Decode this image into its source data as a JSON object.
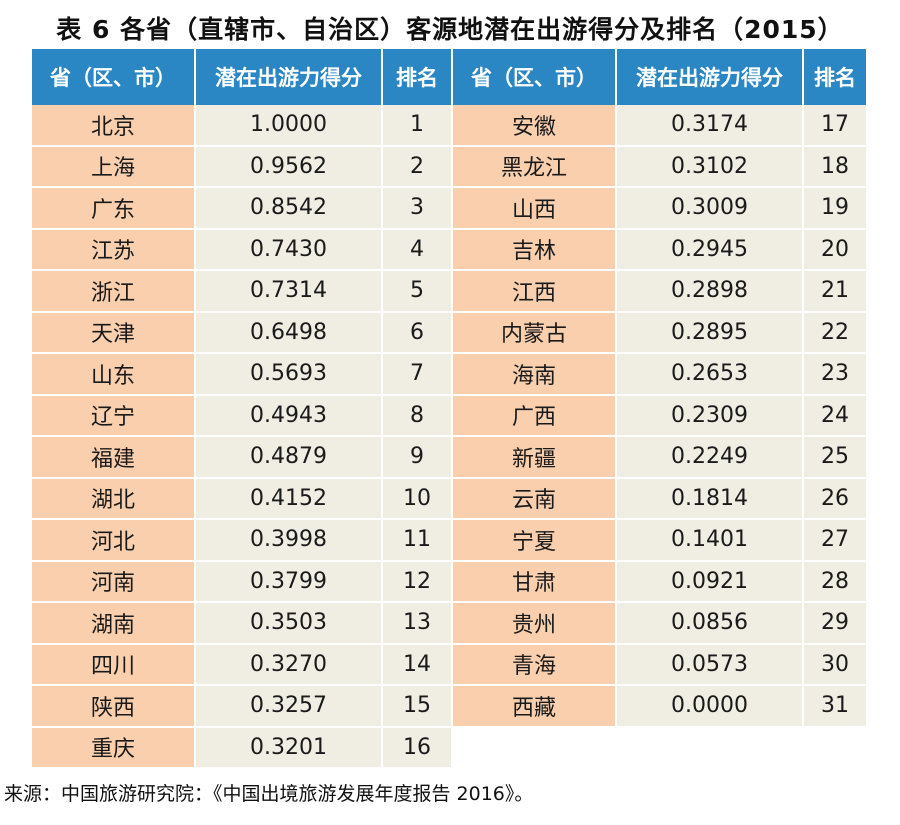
{
  "title": "表 6  各省（直辖市、自治区）客源地潜在出游得分及排名（2015）",
  "headers": [
    "省（区、市）",
    "潜在出游力得分",
    "排名",
    "省（区、市）",
    "潜在出游力得分",
    "排名"
  ],
  "left_rows": [
    {
      "province": "北京",
      "score": "1.0000",
      "rank": "1"
    },
    {
      "province": "上海",
      "score": "0.9562",
      "rank": "2"
    },
    {
      "province": "广东",
      "score": "0.8542",
      "rank": "3"
    },
    {
      "province": "江苏",
      "score": "0.7430",
      "rank": "4"
    },
    {
      "province": "浙江",
      "score": "0.7314",
      "rank": "5"
    },
    {
      "province": "天津",
      "score": "0.6498",
      "rank": "6"
    },
    {
      "province": "山东",
      "score": "0.5693",
      "rank": "7"
    },
    {
      "province": "辽宁",
      "score": "0.4943",
      "rank": "8"
    },
    {
      "province": "福建",
      "score": "0.4879",
      "rank": "9"
    },
    {
      "province": "湖北",
      "score": "0.4152",
      "rank": "10"
    },
    {
      "province": "河北",
      "score": "0.3998",
      "rank": "11"
    },
    {
      "province": "河南",
      "score": "0.3799",
      "rank": "12"
    },
    {
      "province": "湖南",
      "score": "0.3503",
      "rank": "13"
    },
    {
      "province": "四川",
      "score": "0.3270",
      "rank": "14"
    },
    {
      "province": "陕西",
      "score": "0.3257",
      "rank": "15"
    },
    {
      "province": "重庆",
      "score": "0.3201",
      "rank": "16"
    }
  ],
  "right_rows": [
    {
      "province": "安徽",
      "score": "0.3174",
      "rank": "17"
    },
    {
      "province": "黑龙江",
      "score": "0.3102",
      "rank": "18"
    },
    {
      "province": "山西",
      "score": "0.3009",
      "rank": "19"
    },
    {
      "province": "吉林",
      "score": "0.2945",
      "rank": "20"
    },
    {
      "province": "江西",
      "score": "0.2898",
      "rank": "21"
    },
    {
      "province": "内蒙古",
      "score": "0.2895",
      "rank": "22"
    },
    {
      "province": "海南",
      "score": "0.2653",
      "rank": "23"
    },
    {
      "province": "广西",
      "score": "0.2309",
      "rank": "24"
    },
    {
      "province": "新疆",
      "score": "0.2249",
      "rank": "25"
    },
    {
      "province": "云南",
      "score": "0.1814",
      "rank": "26"
    },
    {
      "province": "宁夏",
      "score": "0.1401",
      "rank": "27"
    },
    {
      "province": "甘肃",
      "score": "0.0921",
      "rank": "28"
    },
    {
      "province": "贵州",
      "score": "0.0856",
      "rank": "29"
    },
    {
      "province": "青海",
      "score": "0.0573",
      "rank": "30"
    },
    {
      "province": "西藏",
      "score": "0.0000",
      "rank": "31"
    }
  ],
  "source": "来源：中国旅游研究院：《中国出境旅游发展年度报告 2016》。",
  "colors": {
    "header_bg": "#2b87c4",
    "province_bg": "#f9cfae",
    "value_bg": "#f0ede3"
  }
}
